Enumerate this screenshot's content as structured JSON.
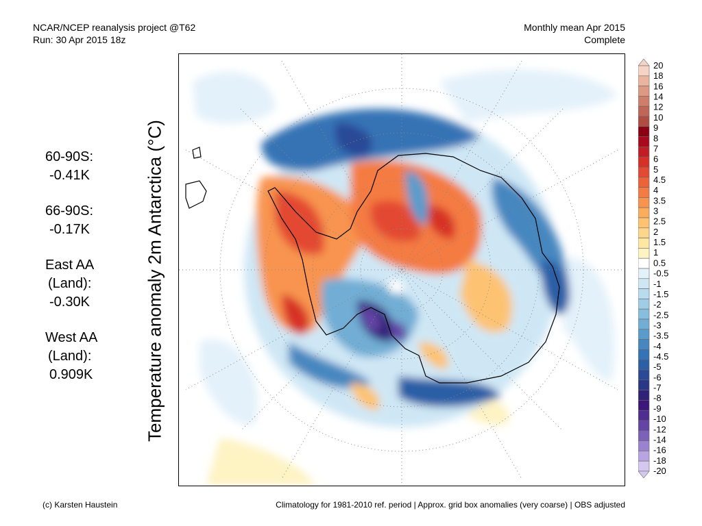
{
  "header": {
    "left_line1": "NCAR/NCEP reanalysis project @T62",
    "left_line2": "Run: 30 Apr 2015 18z",
    "right_line1": "Monthly mean Apr 2015",
    "right_line2": "Complete"
  },
  "y_axis_title": "Temperature anomaly 2m Antarctica (°C)",
  "stats": [
    {
      "label": "60-90S:",
      "value": "-0.41K"
    },
    {
      "label": "66-90S:",
      "value": "-0.17K"
    },
    {
      "label": "East AA\n(Land):",
      "value": "-0.30K"
    },
    {
      "label": "West AA\n(Land):",
      "value": "0.909K"
    }
  ],
  "colorbar": {
    "labels": [
      "20",
      "18",
      "16",
      "14",
      "12",
      "10",
      "9",
      "8",
      "7",
      "6",
      "5",
      "4.5",
      "4",
      "3.5",
      "3",
      "2.5",
      "2",
      "1.5",
      "1",
      "0.5",
      "-0.5",
      "-1",
      "-1.5",
      "-2",
      "-2.5",
      "-3",
      "-3.5",
      "-4",
      "-4.5",
      "-5",
      "-6",
      "-7",
      "-8",
      "-9",
      "-10",
      "-12",
      "-14",
      "-16",
      "-18",
      "-20"
    ],
    "colors": [
      "#f6d3c4",
      "#eab59f",
      "#dc9a82",
      "#cf7f69",
      "#c06655",
      "#b04d43",
      "#8c0014",
      "#a9091c",
      "#c01e24",
      "#d73027",
      "#e34a33",
      "#ec6239",
      "#f47b43",
      "#f8944f",
      "#fbac5d",
      "#fdc373",
      "#fdd68a",
      "#fee6a3",
      "#fef3c3",
      "#ffffff",
      "#e3f1fa",
      "#cfe7f5",
      "#b8dbee",
      "#a0cde6",
      "#88bedd",
      "#71add4",
      "#5b9bcb",
      "#4687c0",
      "#3473b5",
      "#2c5fa6",
      "#2a4a97",
      "#283786",
      "#302277",
      "#3c167a",
      "#4d2d8f",
      "#6445a5",
      "#7d60ba",
      "#9a82cf",
      "#b7a4e1",
      "#d4c8f0"
    ]
  },
  "footer": {
    "left": "(c) Karsten Haustein",
    "right": "Climatology for 1981-2010 ref. period | Approx. grid box anomalies (very coarse) | OBS adjusted"
  }
}
